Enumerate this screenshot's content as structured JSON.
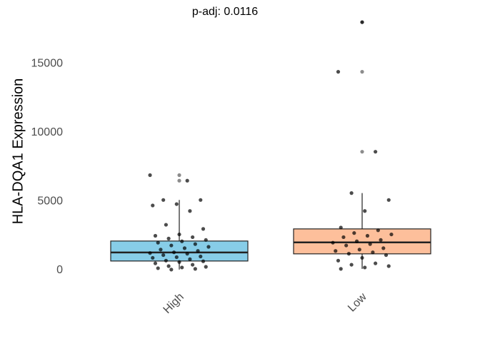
{
  "chart_data": {
    "type": "box",
    "title": "p-adj: 0.0116",
    "y_label": "HLA-DQA1 Expression",
    "categories": [
      "High",
      "Low"
    ],
    "colors": [
      "#87cde8",
      "#fdbf9b"
    ],
    "boxes": [
      {
        "whisker_low": 50,
        "q1": 670,
        "median": 1290,
        "q3": 2120,
        "whisker_high": 5100,
        "outliers": [
          6900,
          6500
        ]
      },
      {
        "whisker_low": 100,
        "q1": 1190,
        "median": 2020,
        "q3": 3000,
        "whisker_high": 5600,
        "outliers": [
          18000,
          14400,
          8600
        ]
      }
    ],
    "points": [
      [
        6900,
        6500,
        5100,
        5100,
        4800,
        4700,
        4300,
        3300,
        3000,
        2600,
        2500,
        2400,
        2300,
        2200,
        2100,
        2000,
        1900,
        1800,
        1700,
        1600,
        1500,
        1400,
        1300,
        1250,
        1200,
        1100,
        1000,
        950,
        900,
        800,
        700,
        650,
        600,
        500,
        400,
        300,
        250,
        200,
        150,
        100,
        50
      ],
      [
        18000,
        14400,
        8600,
        5600,
        5100,
        4300,
        3100,
        2900,
        2700,
        2600,
        2500,
        2400,
        2200,
        2100,
        2000,
        1900,
        1800,
        1600,
        1500,
        1400,
        1300,
        1200,
        1100,
        900,
        700,
        500,
        400,
        300,
        200,
        100
      ]
    ],
    "ylim": [
      -1200,
      18600
    ],
    "yticks": [
      0,
      5000,
      10000,
      15000
    ],
    "grid": false
  }
}
